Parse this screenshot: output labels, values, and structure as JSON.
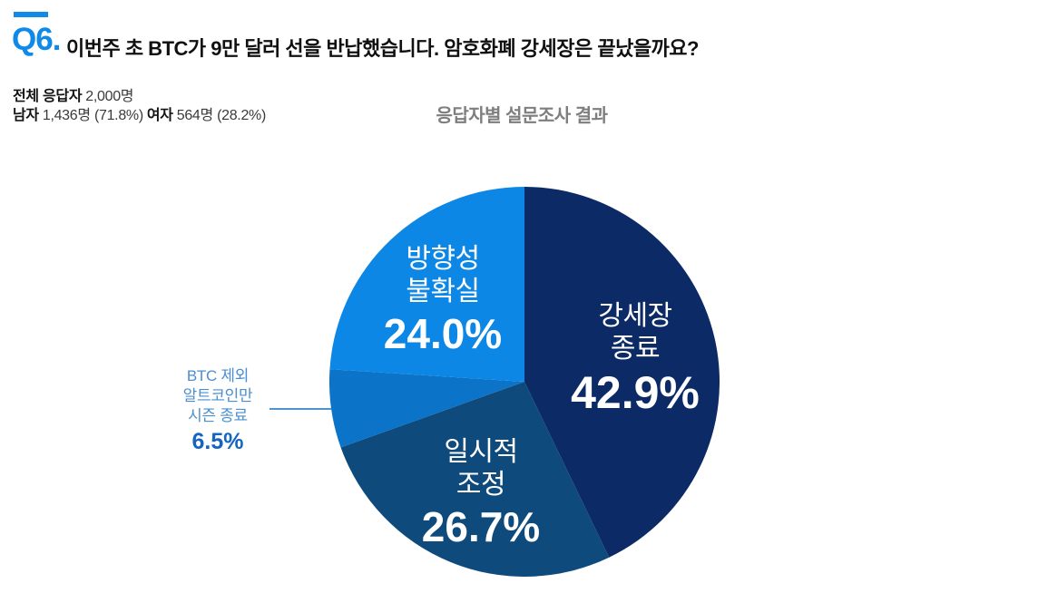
{
  "accent_color": "#0f8ae8",
  "header": {
    "q_label": "Q6.",
    "title": "이번주 초 BTC가 9만 달러 선을 반납했습니다. 암호화폐 강세장은 끝났을까요?"
  },
  "respondents": {
    "total_label": "전체 응답자",
    "total_value": "2,000명",
    "male_label": "남자",
    "male_value": "1,436명 (71.8%)",
    "female_label": "여자",
    "female_value": "564명 (28.2%)"
  },
  "chart_heading": "응답자별 설문조사 결과",
  "chart_data": {
    "type": "pie",
    "title": "응답자별 설문조사 결과",
    "categories": [
      "강세장 종료",
      "일시적 조정",
      "BTC 제외 알트코인만 시즌 종료",
      "방향성 불확실"
    ],
    "values": [
      42.9,
      26.7,
      6.5,
      24.0
    ],
    "unit": "%",
    "colors": [
      "#0c2a66",
      "#0e4a7c",
      "#0b74c8",
      "#0c87e6"
    ],
    "start_angle": "12-o-clock",
    "direction": "clockwise",
    "legend": "none",
    "labels_on_slices": true
  },
  "slice_labels": {
    "bull_end": {
      "line1": "강세장",
      "line2": "종료",
      "pct": "42.9%"
    },
    "temp_adjust": {
      "line1": "일시적",
      "line2": "조정",
      "pct": "26.7%"
    },
    "uncertain": {
      "line1": "방향성",
      "line2": "불확실",
      "pct": "24.0%"
    },
    "alt_season": {
      "line1": "BTC 제외",
      "line2": "알트코인만",
      "line3": "시즌 종료",
      "pct": "6.5%"
    }
  }
}
